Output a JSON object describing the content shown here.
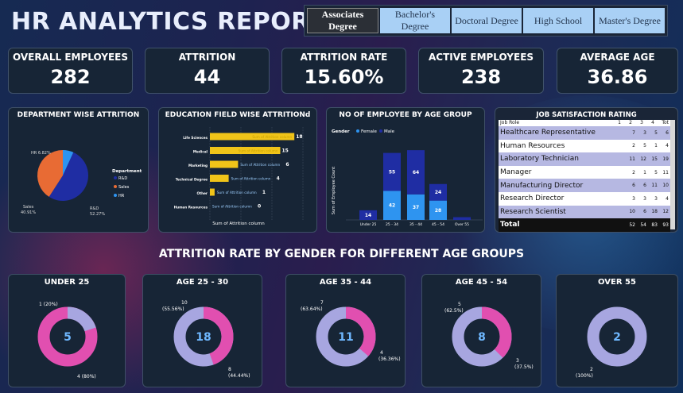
{
  "title": "HR ANALYTICS REPORT",
  "slicer": [
    "Associates Degree",
    "Bachelor's Degree",
    "Doctoral Degree",
    "High School",
    "Master's Degree"
  ],
  "kpis": [
    {
      "label": "OVERALL EMPLOYEES",
      "value": "282"
    },
    {
      "label": "ATTRITION",
      "value": "44"
    },
    {
      "label": "ATTRITION RATE",
      "value": "15.60%"
    },
    {
      "label": "ACTIVE EMPLOYEES",
      "value": "238"
    },
    {
      "label": "AVERAGE AGE",
      "value": "36.86"
    }
  ],
  "dept": {
    "title": "DEPARTMENT WISE ATTRITION",
    "legend_title": "Department",
    "legend": [
      "R&D",
      "Sales",
      "HR"
    ],
    "labels": {
      "hr": "HR 6.82%",
      "sales_a": "Sales",
      "sales_b": "40.91%",
      "rd_a": "R&D",
      "rd_b": "52.27%"
    }
  },
  "edu": {
    "title": "EDUCATION FIELD WISE ATTRITIONd",
    "xlabel": "Sum of Attrition column",
    "bar_label": "Sum of Attrition column"
  },
  "age": {
    "title": "NO OF EMPLOYEE BY AGE GROUP",
    "legend_title": "Gender",
    "legend": [
      "Female",
      "Male"
    ],
    "ylabel": "Sum of Employee Count"
  },
  "js": {
    "title": "JOB SATISFACTION RATING",
    "head": [
      "Job Role",
      "1",
      "2",
      "3",
      "4",
      "Tot"
    ],
    "rows": [
      [
        "Healthcare Representative",
        "",
        "7",
        "3",
        "5",
        "6"
      ],
      [
        "Human Resources",
        "",
        "2",
        "5",
        "1",
        "4"
      ],
      [
        "Laboratory Technician",
        "",
        "11",
        "12",
        "15",
        "19"
      ],
      [
        "Manager",
        "",
        "2",
        "1",
        "5",
        "11"
      ],
      [
        "Manufacturing Director",
        "",
        "6",
        "6",
        "11",
        "10"
      ],
      [
        "Research Director",
        "",
        "3",
        "3",
        "3",
        "4"
      ],
      [
        "Research Scientist",
        "",
        "10",
        "6",
        "18",
        "12"
      ]
    ],
    "total": [
      "Total",
      "",
      "52",
      "54",
      "83",
      "93"
    ]
  },
  "gender_title": "ATTRITION RATE BY GENDER FOR DIFFERENT AGE GROUPS",
  "donuts": [
    {
      "title": "UNDER 25",
      "center": "5",
      "l1a": "1 (20%)",
      "l1b": "",
      "l2a": "4 (80%)",
      "l2b": ""
    },
    {
      "title": "AGE 25 - 30",
      "center": "18",
      "l1a": "10",
      "l1b": "(55.56%)",
      "l2a": "8",
      "l2b": "(44.44%)"
    },
    {
      "title": "AGE 35 - 44",
      "center": "11",
      "l1a": "7",
      "l1b": "(63.64%)",
      "l2a": "4",
      "l2b": "(36.36%)"
    },
    {
      "title": "AGE 45 - 54",
      "center": "8",
      "l1a": "5",
      "l1b": "(62.5%)",
      "l2a": "3",
      "l2b": "(37.5%)"
    },
    {
      "title": "OVER 55",
      "center": "2",
      "l1a": "",
      "l1b": "",
      "l2a": "2",
      "l2b": "(100%)"
    }
  ],
  "colors": {
    "male": "#a7a6e0",
    "female": "#e14fb0",
    "blue": "#1f2da3",
    "orange": "#e86b34",
    "light": "#2e94f0",
    "gold": "#f0c419"
  },
  "chart_data": [
    {
      "type": "pie",
      "title": "DEPARTMENT WISE ATTRITION",
      "categories": [
        "R&D",
        "Sales",
        "HR"
      ],
      "values": [
        52.27,
        40.91,
        6.82
      ]
    },
    {
      "type": "bar",
      "title": "EDUCATION FIELD WISE ATTRITIONd",
      "categories": [
        "Life Sciences",
        "Medical",
        "Marketing",
        "Technical Degree",
        "Other",
        "Human Resources"
      ],
      "values": [
        18,
        15,
        6,
        4,
        1,
        0
      ],
      "xlabel": "Sum of Attrition column"
    },
    {
      "type": "bar",
      "title": "NO OF EMPLOYEE BY AGE GROUP",
      "categories": [
        "Under 25",
        "25 - 34",
        "35 - 44",
        "45 - 54",
        "Over 55"
      ],
      "series": [
        {
          "name": "Female",
          "values": [
            0,
            42,
            37,
            28,
            0
          ]
        },
        {
          "name": "Male",
          "values": [
            14,
            55,
            64,
            24,
            4
          ]
        }
      ],
      "ylabel": "Sum of Employee Count"
    }
  ]
}
